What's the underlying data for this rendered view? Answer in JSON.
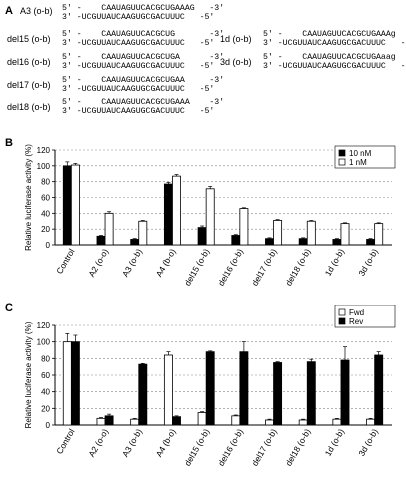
{
  "panel_labels": [
    "A",
    "B",
    "C"
  ],
  "sequences": [
    {
      "name": "A3 (o-b)",
      "top": "5′ -    CAAUAGUUCACGCUGAAAG   -3′",
      "bottom": "3′ -UCGUUAUCAAGUGCGACUUUC   -5′"
    },
    {
      "name": "del15 (o-b)",
      "top": "5′ -    CAAUAGUUCACGCUG       -3′",
      "bottom": "3′ -UCGUUAUCAAGUGCGACUUUC   -5′"
    },
    {
      "name": "del16 (o-b)",
      "top": "5′ -    CAAUAGUUCACGCUGA      -3′",
      "bottom": "3′ -UCGUUAUCAAGUGCGACUUUC   -5′"
    },
    {
      "name": "del17 (o-b)",
      "top": "5′ -    CAAUAGUUCACGCUGAA     -3′",
      "bottom": "3′ -UCGUUAUCAAGUGCGACUUUC   -5′"
    },
    {
      "name": "del18 (o-b)",
      "top": "5′ -    CAAUAGUUCACGCUGAAA    -3′",
      "bottom": "3′ -UCGUUAUCAAGUGCGACUUUC   -5′"
    },
    {
      "name": "1d (o-b)",
      "top": "5′ -    CAAUAGUUCACGCUGAAAg   -3′",
      "bottom": "3′ -UCGUUAUCAAGUGCGACUUUC   -5′"
    },
    {
      "name": "3d (o-b)",
      "top": "5′ -    CAAUAGUUCACGCUGAaag   -3′",
      "bottom": "3′ -UCGUUAUCAAGUGCGACUUUC   -5′"
    }
  ],
  "chart_data": [
    {
      "type": "bar",
      "panel": "B",
      "ylabel": "Relative luciferase activity (%)",
      "ylim": [
        0,
        120
      ],
      "yticks": [
        0,
        20,
        40,
        60,
        80,
        100,
        120
      ],
      "grid": true,
      "legend_position": "top-right",
      "categories": [
        "Control",
        "A2 (o-o)",
        "A3 (o-b)",
        "A4 (b-o)",
        "del15 (o-b)",
        "del16 (o-b)",
        "del17 (o-b)",
        "del18 (o-b)",
        "1d (o-b)",
        "3d (o-b)"
      ],
      "series": [
        {
          "name": "10 nM",
          "color": "#000000",
          "values": [
            100,
            11,
            7,
            77,
            22,
            12,
            8,
            8,
            7,
            7
          ],
          "errors": [
            5,
            1,
            1,
            2,
            2,
            1,
            1,
            1,
            1,
            1
          ]
        },
        {
          "name": "1 nM",
          "color": "#ffffff",
          "values": [
            101,
            40,
            30,
            87,
            71,
            46,
            31,
            30,
            27,
            27
          ],
          "errors": [
            2,
            2,
            1,
            2,
            3,
            1,
            1,
            1,
            1,
            1
          ]
        }
      ]
    },
    {
      "type": "bar",
      "panel": "C",
      "ylabel": "Relative luciferase activity (%)",
      "ylim": [
        0,
        120
      ],
      "yticks": [
        0,
        20,
        40,
        60,
        80,
        100,
        120
      ],
      "grid": true,
      "legend_position": "top-right",
      "categories": [
        "Control",
        "A2 (o-o)",
        "A3 (o-b)",
        "A4 (b-o)",
        "del15 (o-b)",
        "del16 (o-b)",
        "del17 (o-b)",
        "del18 (o-b)",
        "1d (o-b)",
        "3d (o-b)"
      ],
      "series": [
        {
          "name": "Fwd",
          "color": "#ffffff",
          "values": [
            100,
            8,
            7,
            84,
            15,
            11,
            6,
            6,
            7,
            7
          ],
          "errors": [
            10,
            1,
            1,
            4,
            1,
            1,
            1,
            1,
            1,
            1
          ]
        },
        {
          "name": "Rev",
          "color": "#000000",
          "values": [
            100,
            11,
            73,
            10,
            88,
            88,
            75,
            76,
            78,
            84
          ],
          "errors": [
            8,
            2,
            1,
            1,
            1,
            12,
            1,
            3,
            16,
            4
          ]
        }
      ]
    }
  ]
}
